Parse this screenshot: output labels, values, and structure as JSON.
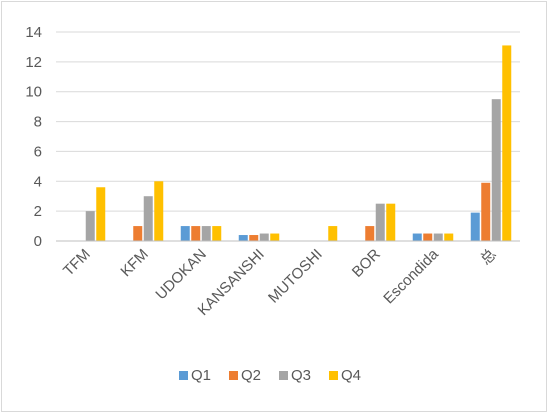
{
  "chart_data": {
    "type": "bar",
    "title": "",
    "xlabel": "",
    "ylabel": "",
    "categories": [
      "TFM",
      "KFM",
      "UDOKAN",
      "KANSANSHI",
      "MUTOSHI",
      "BOR",
      "Escondida",
      "总"
    ],
    "series": [
      {
        "name": "Q1",
        "color": "#5b9bd5",
        "values": [
          0,
          0,
          1,
          0.4,
          0,
          0,
          0.5,
          1.9
        ]
      },
      {
        "name": "Q2",
        "color": "#ed7d31",
        "values": [
          0,
          1,
          1,
          0.4,
          0,
          1,
          0.5,
          3.9
        ]
      },
      {
        "name": "Q3",
        "color": "#a5a5a5",
        "values": [
          2,
          3,
          1,
          0.5,
          0,
          2.5,
          0.5,
          9.5
        ]
      },
      {
        "name": "Q4",
        "color": "#ffc000",
        "values": [
          3.6,
          4,
          1,
          0.5,
          1,
          2.5,
          0.5,
          13.1
        ]
      }
    ],
    "ylim": [
      0,
      14
    ],
    "yticks": [
      "0",
      "2",
      "4",
      "6",
      "8",
      "10",
      "12",
      "14"
    ],
    "grid": true,
    "legend": "bottom"
  }
}
